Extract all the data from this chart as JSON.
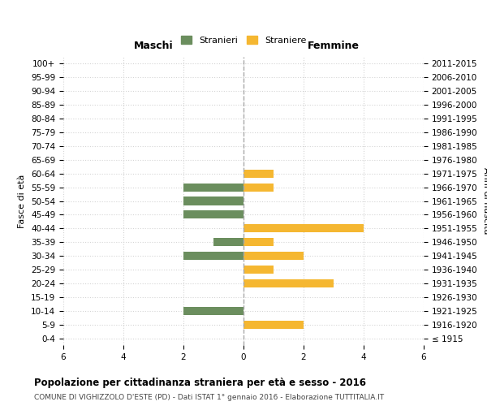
{
  "age_groups": [
    "100+",
    "95-99",
    "90-94",
    "85-89",
    "80-84",
    "75-79",
    "70-74",
    "65-69",
    "60-64",
    "55-59",
    "50-54",
    "45-49",
    "40-44",
    "35-39",
    "30-34",
    "25-29",
    "20-24",
    "15-19",
    "10-14",
    "5-9",
    "0-4"
  ],
  "birth_years": [
    "≤ 1915",
    "1916-1920",
    "1921-1925",
    "1926-1930",
    "1931-1935",
    "1936-1940",
    "1941-1945",
    "1946-1950",
    "1951-1955",
    "1956-1960",
    "1961-1965",
    "1966-1970",
    "1971-1975",
    "1976-1980",
    "1981-1985",
    "1986-1990",
    "1991-1995",
    "1996-2000",
    "2001-2005",
    "2006-2010",
    "2011-2015"
  ],
  "maschi": [
    0,
    0,
    0,
    0,
    0,
    0,
    0,
    0,
    0,
    2,
    2,
    2,
    0,
    1,
    2,
    0,
    0,
    0,
    2,
    0,
    0
  ],
  "femmine": [
    0,
    0,
    0,
    0,
    0,
    0,
    0,
    0,
    1,
    1,
    0,
    0,
    4,
    1,
    2,
    1,
    3,
    0,
    0,
    2,
    0
  ],
  "color_maschi": "#6b8e5e",
  "color_femmine": "#f5b731",
  "title": "Popolazione per cittadinanza straniera per età e sesso - 2016",
  "subtitle": "COMUNE DI VIGHIZZOLO D'ESTE (PD) - Dati ISTAT 1° gennaio 2016 - Elaborazione TUTTITALIA.IT",
  "xlabel_left": "Maschi",
  "xlabel_right": "Femmine",
  "ylabel_left": "Fasce di età",
  "ylabel_right": "Anni di nascita",
  "legend_maschi": "Stranieri",
  "legend_femmine": "Straniere",
  "xlim": 6,
  "background_color": "#ffffff",
  "grid_color": "#d5d5d5"
}
